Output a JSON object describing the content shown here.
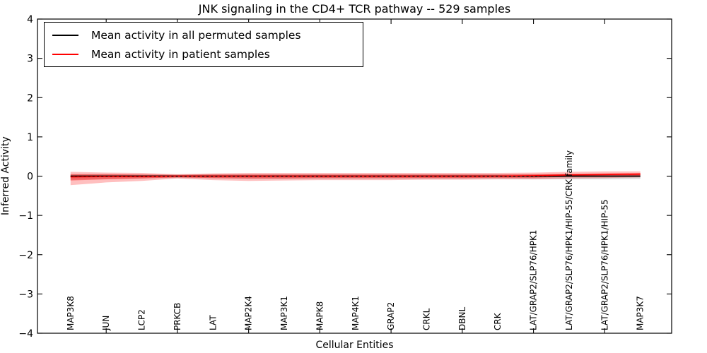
{
  "figure": {
    "title": "JNK signaling in the CD4+ TCR pathway -- 529 samples"
  },
  "legend": {
    "position": "upper left",
    "items": [
      {
        "label": "Mean activity in all permuted samples",
        "color": "#000000"
      },
      {
        "label": "Mean activity in patient samples",
        "color": "#ff0000"
      }
    ]
  },
  "chart_data": {
    "type": "line",
    "title": "JNK signaling in the CD4+ TCR pathway -- 529 samples",
    "xlabel": "Cellular Entities",
    "ylabel": "Inferred Activity",
    "ylim": [
      -4,
      4
    ],
    "yticks": [
      -4,
      -3,
      -2,
      -1,
      0,
      1,
      2,
      3,
      4
    ],
    "xtick_indices": [
      1,
      3,
      5,
      7,
      9,
      11,
      13,
      15
    ],
    "grid": false,
    "legend_position": "upper left",
    "categories": [
      "MAP3K8",
      "JUN",
      "LCP2",
      "PRKCB",
      "LAT",
      "MAP2K4",
      "MAP3K1",
      "MAPK8",
      "MAP4K1",
      "GRAP2",
      "CRKL",
      "DBNL",
      "CRK",
      "LAT/GRAP2/SLP76/HPK1",
      "LAT/GRAP2/SLP76/HPK1/HIP-55/CRK family",
      "LAT/GRAP2/SLP76/HPK1/HIP-55",
      "MAP3K7"
    ],
    "zero_line": {
      "y": 0,
      "style": "dashed",
      "color": "#000000"
    },
    "series": [
      {
        "name": "Mean activity in all permuted samples",
        "color": "#000000",
        "band_color": "rgba(0,0,0,0.14)",
        "values": [
          0,
          0,
          0,
          0,
          0,
          0,
          0,
          0,
          0,
          0,
          0,
          0,
          0,
          0,
          0,
          0,
          0
        ],
        "band_low": [
          -0.09,
          -0.07,
          -0.06,
          -0.05,
          -0.06,
          -0.07,
          -0.07,
          -0.07,
          -0.07,
          -0.07,
          -0.07,
          -0.07,
          -0.07,
          -0.08,
          -0.08,
          -0.08,
          -0.07
        ],
        "band_high": [
          0.05,
          0.05,
          0.04,
          0.04,
          0.05,
          0.05,
          0.05,
          0.05,
          0.05,
          0.05,
          0.05,
          0.05,
          0.05,
          0.05,
          0.05,
          0.05,
          0.05
        ]
      },
      {
        "name": "Mean activity in patient samples",
        "color": "#ff0000",
        "band_color": "rgba(255,0,0,0.25)",
        "inner_band_color": "rgba(255,0,0,0.40)",
        "values": [
          -0.02,
          -0.01,
          -0.01,
          0.0,
          0.0,
          0.0,
          0.0,
          0.0,
          0.0,
          0.0,
          0.0,
          0.0,
          0.0,
          0.01,
          0.03,
          0.04,
          0.05
        ],
        "band_low": [
          -0.23,
          -0.16,
          -0.12,
          -0.06,
          -0.1,
          -0.12,
          -0.11,
          -0.1,
          -0.1,
          -0.1,
          -0.09,
          -0.09,
          -0.08,
          -0.08,
          -0.06,
          -0.05,
          -0.03
        ],
        "band_high": [
          0.11,
          0.09,
          0.08,
          0.05,
          0.07,
          0.08,
          0.08,
          0.08,
          0.08,
          0.08,
          0.08,
          0.08,
          0.08,
          0.09,
          0.11,
          0.12,
          0.12
        ],
        "inner_band_low": [
          -0.11,
          -0.08,
          -0.06,
          -0.03,
          -0.05,
          -0.06,
          -0.06,
          -0.05,
          -0.05,
          -0.05,
          -0.05,
          -0.05,
          -0.04,
          -0.04,
          -0.02,
          -0.01,
          0.0
        ],
        "inner_band_high": [
          0.05,
          0.05,
          0.04,
          0.03,
          0.04,
          0.04,
          0.04,
          0.04,
          0.04,
          0.04,
          0.04,
          0.04,
          0.04,
          0.05,
          0.06,
          0.07,
          0.08
        ]
      }
    ]
  }
}
